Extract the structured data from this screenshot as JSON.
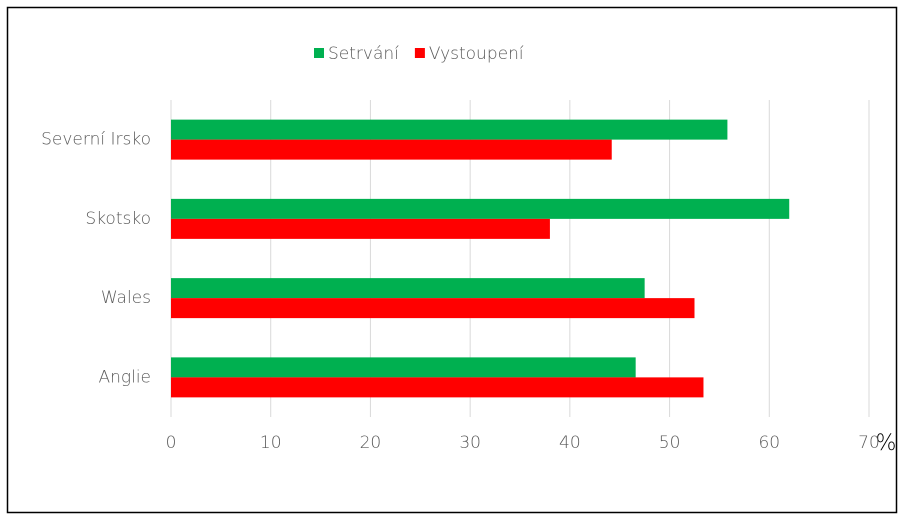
{
  "chart_data": {
    "type": "bar",
    "orientation": "horizontal",
    "categories": [
      "Severní Irsko",
      "Skotsko",
      "Wales",
      "Anglie"
    ],
    "series": [
      {
        "name": "Setrvání",
        "color": "#00b050",
        "values": [
          55.8,
          62.0,
          47.5,
          46.6
        ]
      },
      {
        "name": "Vystoupení",
        "color": "#ff0000",
        "values": [
          44.2,
          38.0,
          52.5,
          53.4
        ]
      }
    ],
    "x_label": "%",
    "xlim": [
      0,
      70
    ],
    "xticks": [
      0,
      10,
      20,
      30,
      40,
      50,
      60,
      70
    ],
    "grid": true,
    "legend": "top"
  }
}
